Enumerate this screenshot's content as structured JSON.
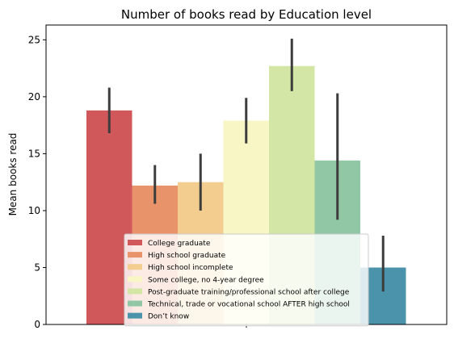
{
  "chart_data": {
    "type": "bar",
    "title": "Number of books read by Education level",
    "xlabel": "",
    "ylabel": "Mean books read",
    "ylim": [
      0,
      26.3
    ],
    "yticks": [
      0,
      5,
      10,
      15,
      20,
      25
    ],
    "legend_position": "lower-center",
    "series": [
      {
        "name": "College graduate",
        "value": 18.8,
        "ci": [
          16.8,
          20.8
        ],
        "color": "#d0575a"
      },
      {
        "name": "High school graduate",
        "value": 12.2,
        "ci": [
          10.6,
          14.0
        ],
        "color": "#e8936a"
      },
      {
        "name": "High school incomplete",
        "value": 12.5,
        "ci": [
          10.0,
          15.0
        ],
        "color": "#f3cc8f"
      },
      {
        "name": "Some college, no 4-year degree",
        "value": 17.9,
        "ci": [
          15.9,
          19.9
        ],
        "color": "#f7f6c4"
      },
      {
        "name": "Post-graduate training/professional school after college",
        "value": 22.7,
        "ci": [
          20.5,
          25.1
        ],
        "color": "#d3e6a5"
      },
      {
        "name": "Technical, trade or vocational school AFTER high school",
        "value": 14.4,
        "ci": [
          9.2,
          20.3
        ],
        "color": "#92c7a5"
      },
      {
        "name": "Don’t know",
        "value": 5.0,
        "ci": [
          2.9,
          7.8
        ],
        "color": "#4b92ab"
      }
    ]
  }
}
